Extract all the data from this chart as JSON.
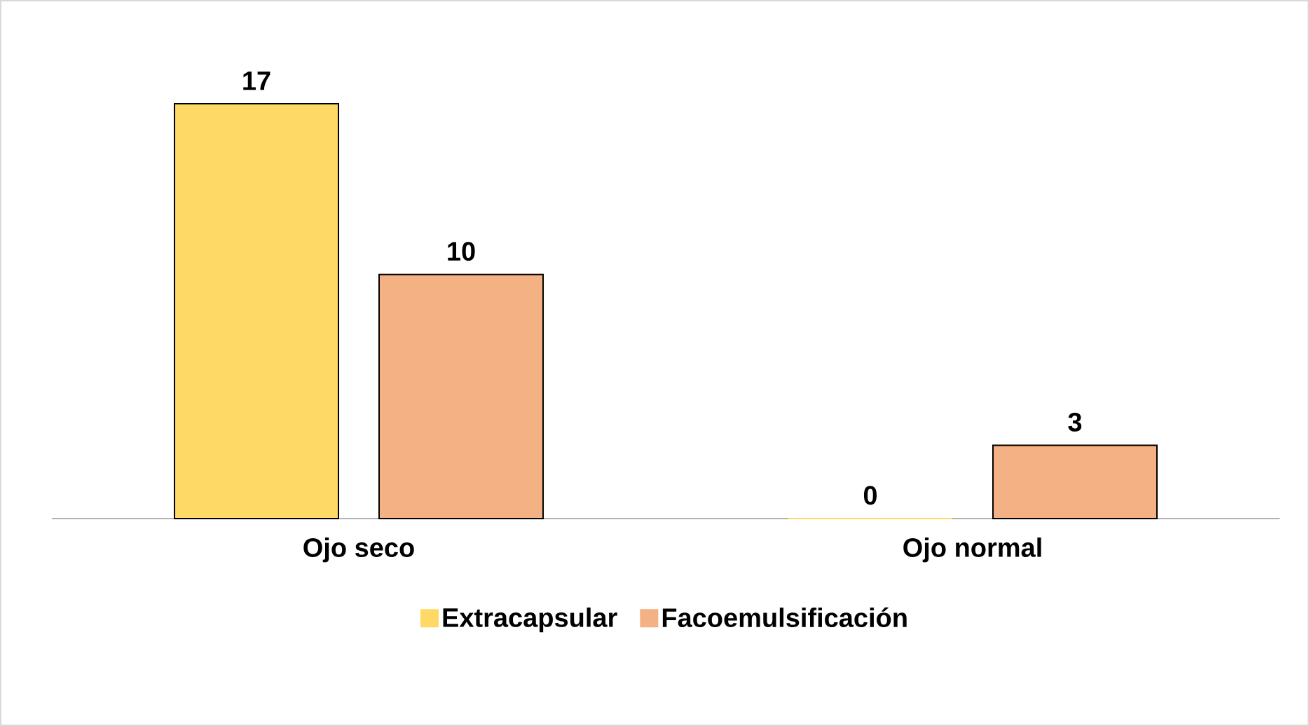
{
  "chart_data": {
    "type": "bar",
    "categories": [
      "Ojo seco",
      "Ojo normal"
    ],
    "series": [
      {
        "name": "Extracapsular",
        "color": "#ffd966",
        "values": [
          17,
          0
        ]
      },
      {
        "name": "Facoemulsificación",
        "color": "#f4b183",
        "values": [
          10,
          3
        ]
      }
    ],
    "data_labels": true,
    "legend": "bottom"
  }
}
